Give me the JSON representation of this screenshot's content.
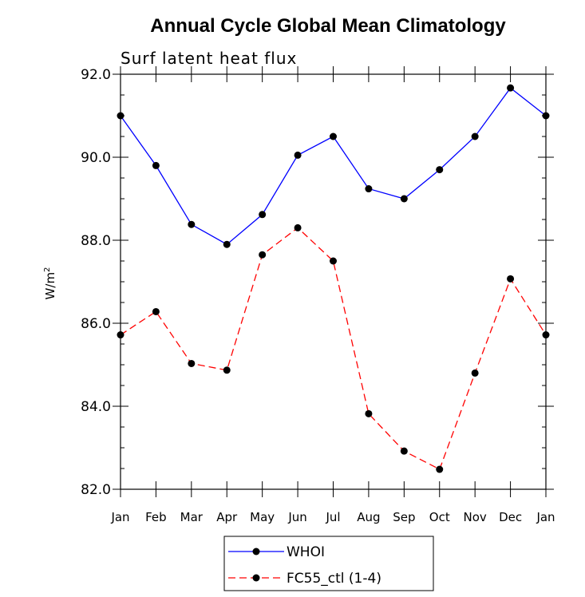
{
  "chart_data": {
    "type": "line",
    "title": "Annual Cycle Global Mean Climatology",
    "subtitle": "Surf latent heat flux",
    "ylabel": "W/m",
    "ylabel_sup": "2",
    "xlabel": "",
    "categories": [
      "Jan",
      "Feb",
      "Mar",
      "Apr",
      "May",
      "Jun",
      "Jul",
      "Aug",
      "Sep",
      "Oct",
      "Nov",
      "Dec",
      "Jan"
    ],
    "ylim": [
      82.0,
      92.0
    ],
    "yticks": [
      "82.0",
      "84.0",
      "86.0",
      "88.0",
      "90.0",
      "92.0"
    ],
    "grid": false,
    "legend_position": "bottom-center",
    "series": [
      {
        "name": "WHOI",
        "color": "#0000ff",
        "dash": "solid",
        "values": [
          91.0,
          89.8,
          88.38,
          87.9,
          88.62,
          90.05,
          90.5,
          89.24,
          89.0,
          89.7,
          90.5,
          91.67,
          91.0
        ]
      },
      {
        "name": "FC55_ctl (1-4)",
        "color": "#ff0000",
        "dash": "dashed",
        "values": [
          85.72,
          86.28,
          85.03,
          84.87,
          87.65,
          88.3,
          87.5,
          83.82,
          82.92,
          82.48,
          84.8,
          87.07,
          85.72
        ]
      }
    ]
  }
}
